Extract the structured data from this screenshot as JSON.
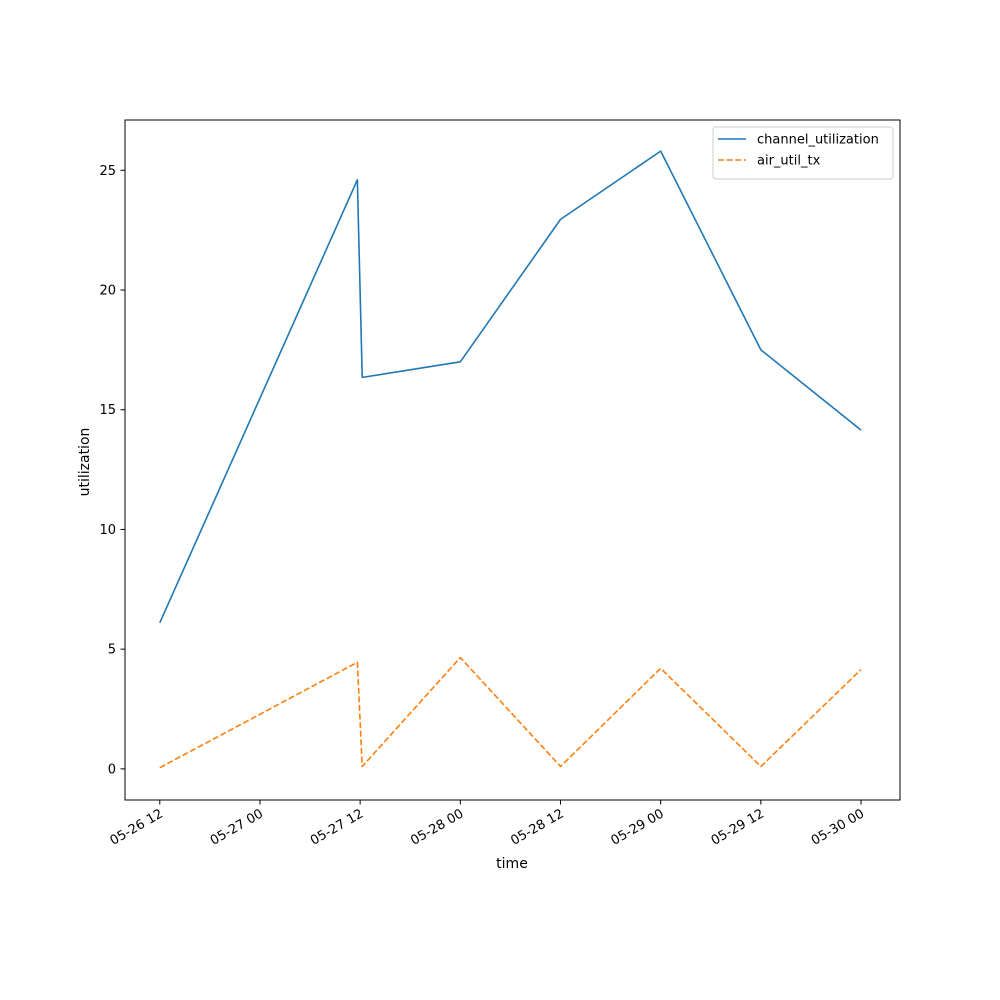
{
  "chart_data": {
    "type": "line",
    "xlabel": "time",
    "ylabel": "utilization",
    "x_ticks": [
      "05-26 12",
      "05-27 00",
      "05-27 12",
      "05-28 00",
      "05-28 12",
      "05-29 00",
      "05-29 12",
      "05-30 00"
    ],
    "xlim": [
      "2024-05-26 07:50",
      "2024-05-30 04:40"
    ],
    "ylim": [
      -1.3,
      27.1
    ],
    "y_ticks": [
      0,
      5,
      10,
      15,
      20,
      25
    ],
    "grid": false,
    "legend_position": "top-right",
    "series": [
      {
        "name": "channel_utilization",
        "color": "#1f77b4",
        "style": "solid",
        "points": [
          {
            "x": "2024-05-26 12:00",
            "y": 6.1
          },
          {
            "x": "2024-05-27 11:40",
            "y": 24.6
          },
          {
            "x": "2024-05-27 12:15",
            "y": 16.35
          },
          {
            "x": "2024-05-28 00:00",
            "y": 17.0
          },
          {
            "x": "2024-05-28 12:00",
            "y": 22.95
          },
          {
            "x": "2024-05-29 00:00",
            "y": 25.8
          },
          {
            "x": "2024-05-29 12:00",
            "y": 17.5
          },
          {
            "x": "2024-05-30 00:00",
            "y": 14.15
          }
        ]
      },
      {
        "name": "air_util_tx",
        "color": "#ff7f0e",
        "style": "dashed",
        "points": [
          {
            "x": "2024-05-26 12:00",
            "y": 0.05
          },
          {
            "x": "2024-05-27 11:40",
            "y": 4.45
          },
          {
            "x": "2024-05-27 12:15",
            "y": 0.1
          },
          {
            "x": "2024-05-28 00:00",
            "y": 4.65
          },
          {
            "x": "2024-05-28 12:00",
            "y": 0.1
          },
          {
            "x": "2024-05-29 00:00",
            "y": 4.2
          },
          {
            "x": "2024-05-29 12:00",
            "y": 0.1
          },
          {
            "x": "2024-05-30 00:00",
            "y": 4.15
          }
        ]
      }
    ]
  }
}
